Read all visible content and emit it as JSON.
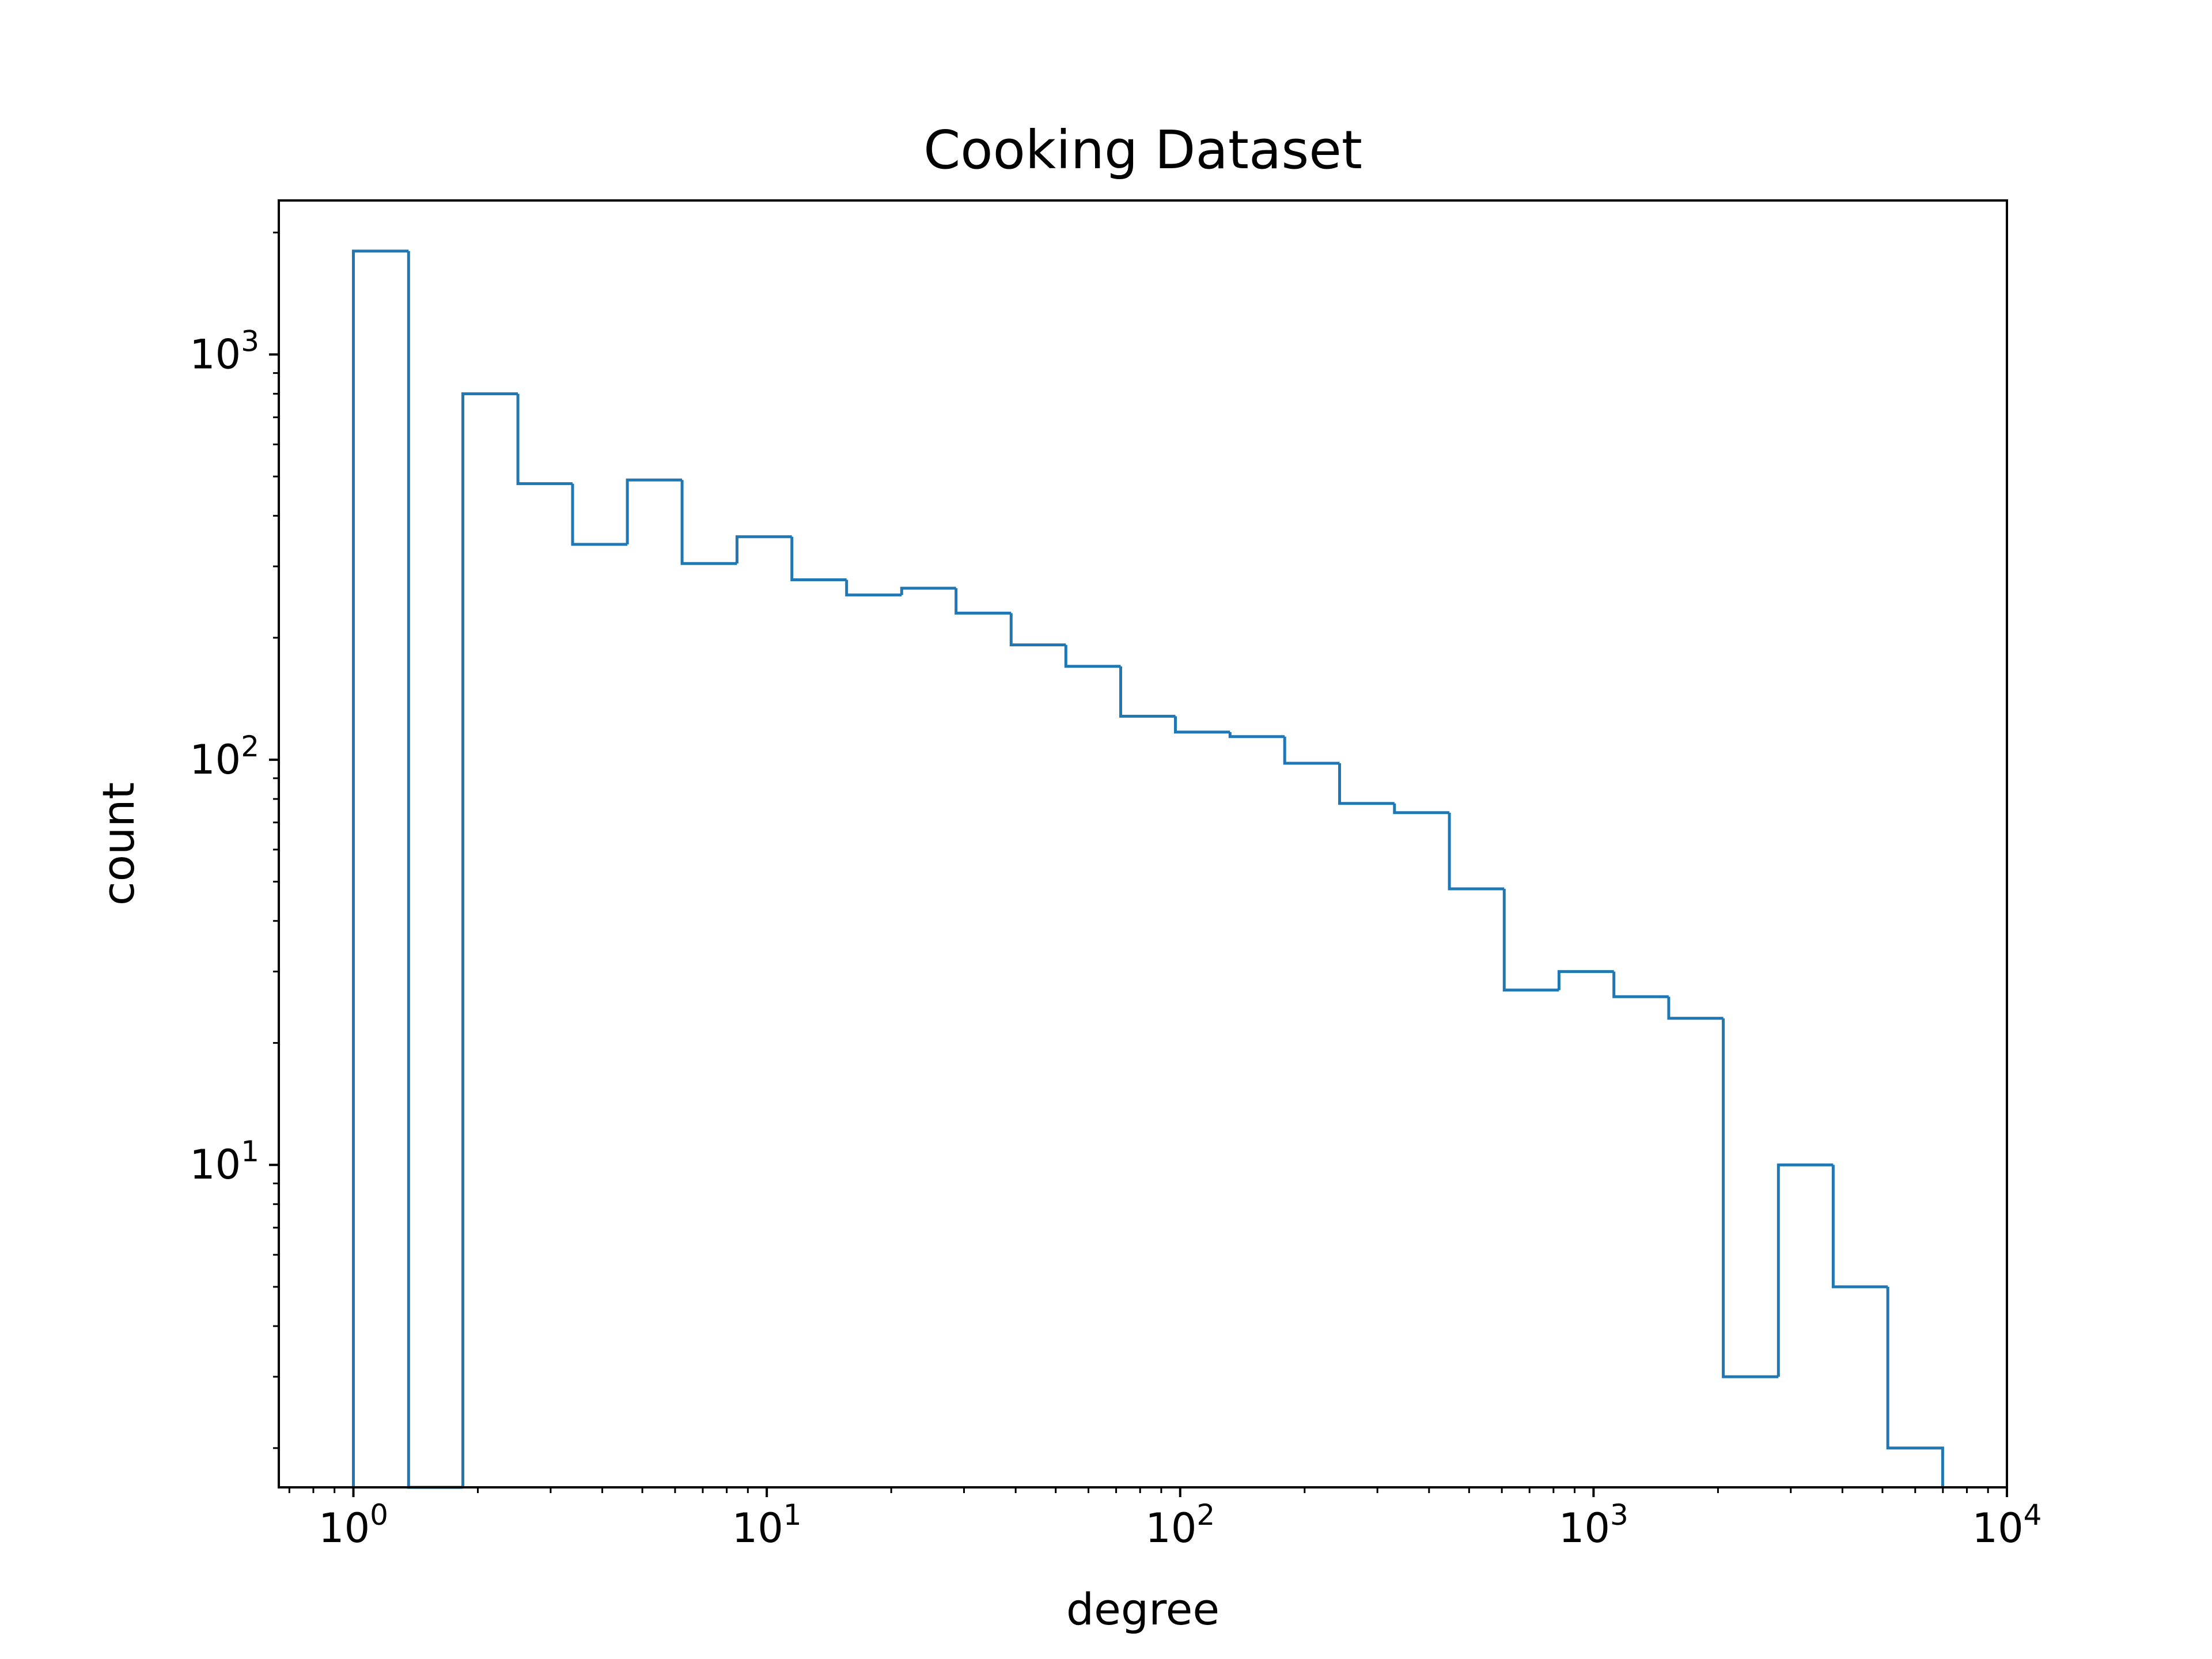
{
  "chart_data": {
    "type": "histogram",
    "title": "Cooking Dataset",
    "xlabel": "degree",
    "ylabel": "count",
    "xscale": "log",
    "yscale": "log",
    "xlim": [
      0.66,
      10000
    ],
    "ylim": [
      1.6,
      2400
    ],
    "grid": false,
    "legend": "none",
    "x_ticks": [
      {
        "value": 1,
        "base": "10",
        "exp": "0"
      },
      {
        "value": 10,
        "base": "10",
        "exp": "1"
      },
      {
        "value": 100,
        "base": "10",
        "exp": "2"
      },
      {
        "value": 1000,
        "base": "10",
        "exp": "3"
      },
      {
        "value": 10000,
        "base": "10",
        "exp": "4"
      }
    ],
    "y_ticks": [
      {
        "value": 10,
        "base": "10",
        "exp": "1"
      },
      {
        "value": 100,
        "base": "10",
        "exp": "2"
      },
      {
        "value": 1000,
        "base": "10",
        "exp": "3"
      }
    ],
    "bin_edges": [
      1,
      1.36,
      1.84,
      2.5,
      3.39,
      4.6,
      6.24,
      8.47,
      11.5,
      15.6,
      21.2,
      28.7,
      39.0,
      52.9,
      71.8,
      97.4,
      132,
      179,
      243,
      330,
      448,
      608,
      825,
      1120,
      1520,
      2060,
      2800,
      3800,
      5150,
      6990
    ],
    "counts": [
      1800,
      0,
      800,
      480,
      340,
      490,
      305,
      355,
      278,
      255,
      265,
      230,
      192,
      170,
      128,
      117,
      114,
      98,
      78,
      74,
      48,
      27,
      30,
      26,
      23,
      3,
      10,
      5,
      2
    ],
    "line_color": "#1f77b4"
  }
}
